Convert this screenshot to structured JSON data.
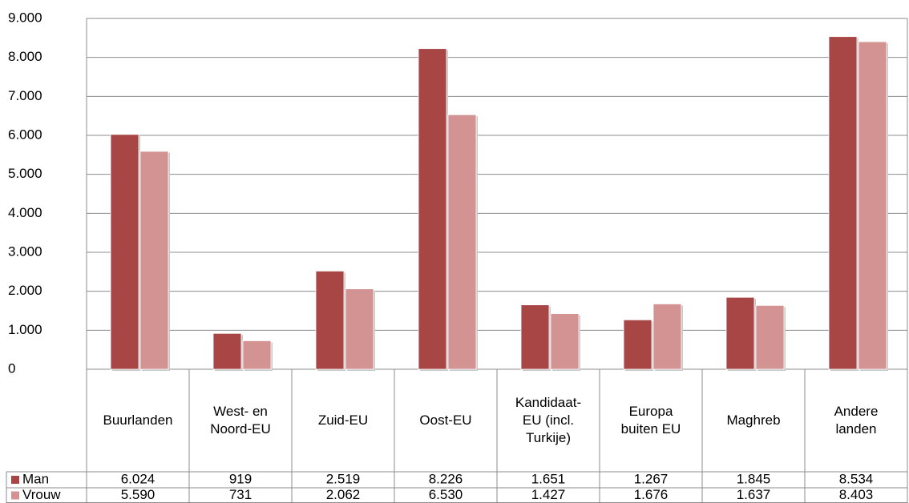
{
  "chart_data": {
    "type": "bar",
    "categories": [
      "Buurlanden",
      "West- en\nNoord-EU",
      "Zuid-EU",
      "Oost-EU",
      "Kandidaat-\nEU (incl.\nTurkije)",
      "Europa\nbuiten EU",
      "Maghreb",
      "Andere\nlanden"
    ],
    "series": [
      {
        "name": "Man",
        "color": "#a84545",
        "values": [
          6024,
          919,
          2519,
          8226,
          1651,
          1267,
          1845,
          8534
        ],
        "value_labels": [
          "6.024",
          "919",
          "2.519",
          "8.226",
          "1.651",
          "1.267",
          "1.845",
          "8.534"
        ]
      },
      {
        "name": "Vrouw",
        "color": "#d39393",
        "values": [
          5590,
          731,
          2062,
          6530,
          1427,
          1676,
          1637,
          8403
        ],
        "value_labels": [
          "5.590",
          "731",
          "2.062",
          "6.530",
          "1.427",
          "1.676",
          "1.637",
          "8.403"
        ]
      }
    ],
    "ylim": [
      0,
      9000
    ],
    "yticks": [
      0,
      {
        "value": 1000,
        "label": "1.000"
      },
      {
        "value": 2000,
        "label": "2.000"
      },
      {
        "value": 3000,
        "label": "3.000"
      },
      {
        "value": 4000,
        "label": "4.000"
      },
      {
        "value": 5000,
        "label": "5.000"
      },
      {
        "value": 6000,
        "label": "6.000"
      },
      {
        "value": 7000,
        "label": "7.000"
      },
      {
        "value": 8000,
        "label": "8.000"
      },
      {
        "value": 9000,
        "label": "9.000"
      }
    ],
    "grid": true
  }
}
